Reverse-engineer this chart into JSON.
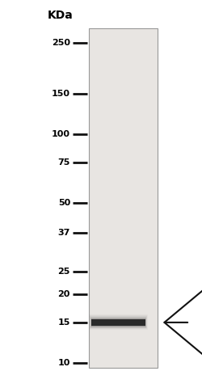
{
  "kda_label": "KDa",
  "markers": [
    250,
    150,
    100,
    75,
    50,
    37,
    25,
    20,
    15,
    10
  ],
  "band_kda": 15,
  "band_color": "#2a2a2a",
  "lane_color": "#e8e5e2",
  "lane_border_color": "#999999",
  "background_color": "#ffffff",
  "marker_line_color": "#111111",
  "arrow_color": "#111111",
  "ylim_log": [
    9.5,
    290
  ],
  "kda_label_fontsize": 10,
  "marker_fontsize": 8
}
